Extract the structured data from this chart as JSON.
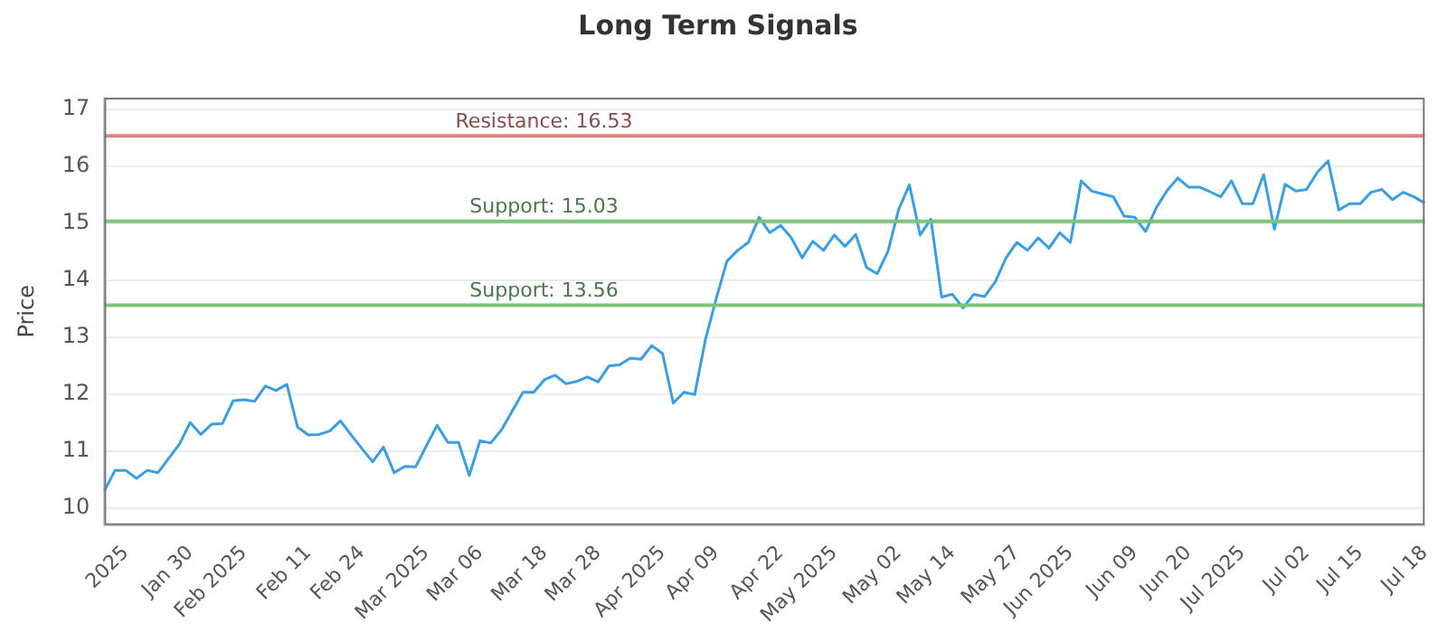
{
  "chart_data": {
    "type": "line",
    "title": "Long Term Signals",
    "ylabel": "Price",
    "categories": [
      null,
      null,
      "2025",
      null,
      null,
      null,
      null,
      null,
      "Jan 30",
      null,
      null,
      null,
      null,
      "Feb 2025",
      null,
      null,
      null,
      null,
      null,
      "Feb 11",
      null,
      null,
      null,
      null,
      "Feb 24",
      null,
      null,
      null,
      null,
      null,
      "Mar 2025",
      null,
      null,
      null,
      null,
      "Mar 06",
      null,
      null,
      null,
      null,
      null,
      "Mar 18",
      null,
      null,
      null,
      null,
      "Mar 28",
      null,
      null,
      null,
      null,
      null,
      "Apr 2025",
      null,
      null,
      null,
      null,
      "Apr 09",
      null,
      null,
      null,
      null,
      null,
      "Apr 22",
      null,
      null,
      null,
      null,
      "May 2025",
      null,
      null,
      null,
      null,
      null,
      "May 02",
      null,
      null,
      null,
      null,
      "May 14",
      null,
      null,
      null,
      null,
      null,
      "May 27",
      null,
      null,
      null,
      null,
      "Jun 2025",
      null,
      null,
      null,
      null,
      null,
      "Jun 09",
      null,
      null,
      null,
      null,
      "Jun 20",
      null,
      null,
      null,
      null,
      "Jul 2025",
      null,
      null,
      null,
      null,
      null,
      "Jul 02",
      null,
      null,
      null,
      null,
      "Jul 15",
      null,
      null,
      null,
      null,
      null,
      "Jul 18"
    ],
    "series": [
      {
        "color": "#3a9ee4",
        "values": [
          10.3,
          10.66,
          10.66,
          10.52,
          10.66,
          10.62,
          10.87,
          11.12,
          11.5,
          11.29,
          11.47,
          11.48,
          11.88,
          11.9,
          11.87,
          12.14,
          12.06,
          12.17,
          11.42,
          11.28,
          11.29,
          11.35,
          11.53,
          11.28,
          11.04,
          10.81,
          11.07,
          10.62,
          10.73,
          10.72,
          11.09,
          11.45,
          11.15,
          11.15,
          10.57,
          11.18,
          11.14,
          11.37,
          11.7,
          12.03,
          12.03,
          12.25,
          12.33,
          12.18,
          12.22,
          12.3,
          12.21,
          12.49,
          12.51,
          12.63,
          12.61,
          12.85,
          12.71,
          11.84,
          12.03,
          11.99,
          12.96,
          13.67,
          14.33,
          14.52,
          14.66,
          15.1,
          14.83,
          14.96,
          14.74,
          14.39,
          14.68,
          14.52,
          14.79,
          14.59,
          14.8,
          14.22,
          14.11,
          14.5,
          15.24,
          15.67,
          14.79,
          15.07,
          13.7,
          13.75,
          13.51,
          13.75,
          13.71,
          13.97,
          14.39,
          14.66,
          14.52,
          14.74,
          14.56,
          14.83,
          14.66,
          15.74,
          15.56,
          15.51,
          15.46,
          15.12,
          15.1,
          14.85,
          15.27,
          15.57,
          15.79,
          15.63,
          15.63,
          15.55,
          15.46,
          15.74,
          15.34,
          15.34,
          15.85,
          14.89,
          15.68,
          15.56,
          15.59,
          15.89,
          16.09,
          15.23,
          15.34,
          15.34,
          15.54,
          15.59,
          15.41,
          15.54,
          15.46,
          15.35
        ]
      }
    ],
    "ylim": [
      9.7,
      17.2
    ],
    "yticks": [
      10,
      11,
      12,
      13,
      14,
      15,
      16,
      17
    ],
    "grid": "y",
    "legend": false,
    "marker": "none",
    "line_style": "solid",
    "ref_lines": [
      {
        "axis": "y",
        "value": 16.53,
        "label": "Resistance: 16.53",
        "color": "#e08080"
      },
      {
        "axis": "y",
        "value": 15.03,
        "label": "Support: 15.03",
        "color": "#7cc47c"
      },
      {
        "axis": "y",
        "value": 13.56,
        "label": "Support: 13.56",
        "color": "#7cc47c"
      }
    ]
  }
}
